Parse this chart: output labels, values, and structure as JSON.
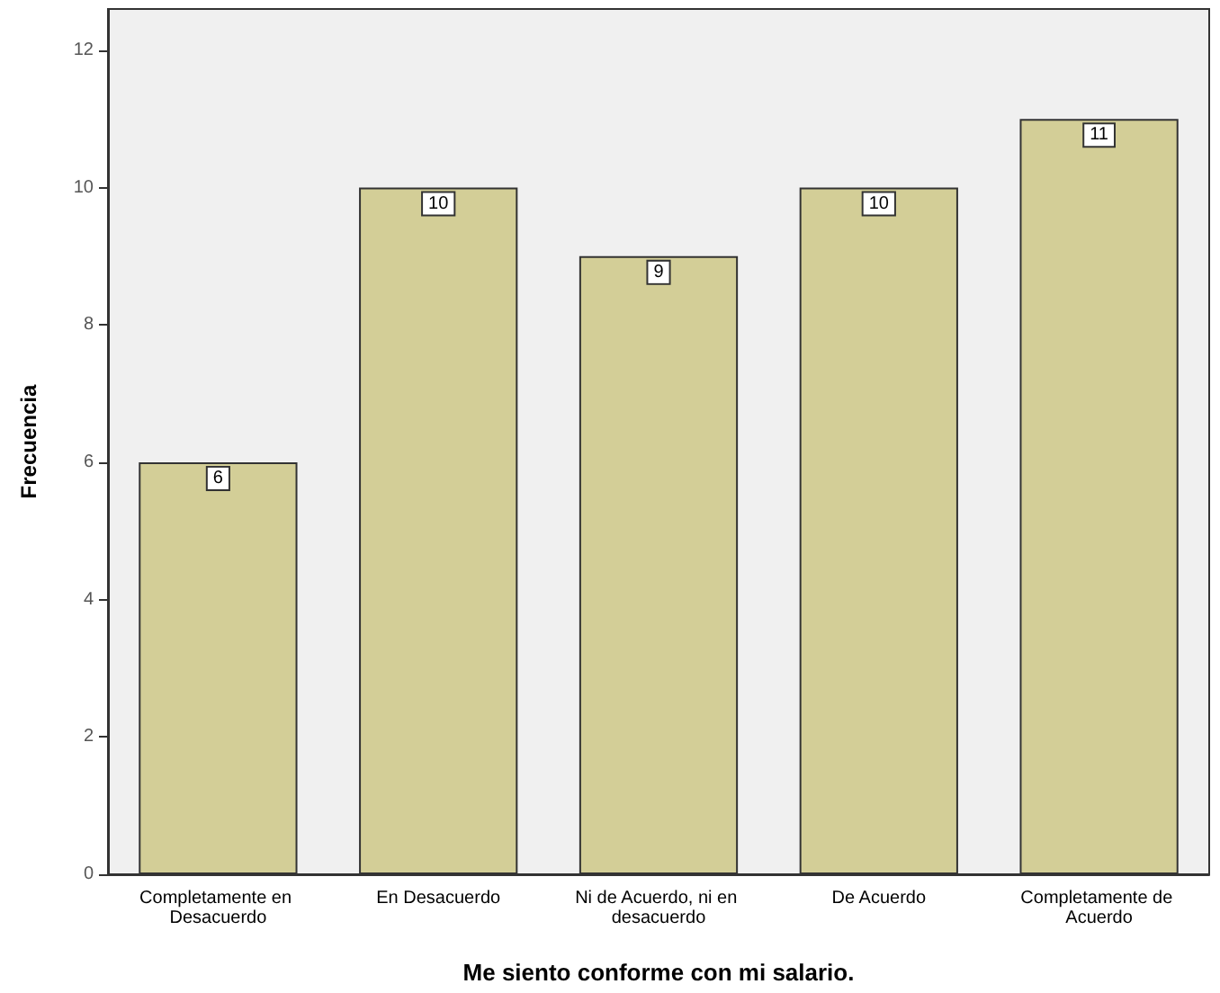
{
  "chart_data": {
    "type": "bar",
    "xlabel": "Me siento conforme con mi salario.",
    "ylabel": "Frecuencia",
    "categories": [
      "Completamente en Desacuerdo",
      "En Desacuerdo",
      "Ni de Acuerdo, ni en desacuerdo",
      "De Acuerdo",
      "Completamente de Acuerdo"
    ],
    "values": [
      6,
      10,
      9,
      10,
      11
    ],
    "color": "#d3ce97",
    "ylim": [
      0,
      12.6
    ],
    "yticks": [
      0,
      2,
      4,
      6,
      8,
      10,
      12
    ],
    "grid": false,
    "data_labels": true
  }
}
